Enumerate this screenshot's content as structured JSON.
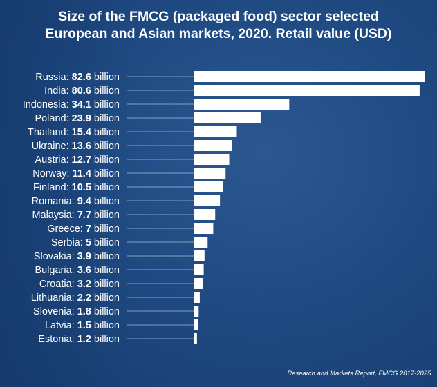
{
  "chart_data": {
    "type": "bar",
    "orientation": "horizontal",
    "title": "Size of the FMCG (packaged food) sector selected European and Asian markets, 2020. Retail value (USD)",
    "title_lines": [
      "Size of the FMCG (packaged food) sector selected",
      "European and Asian markets, 2020. Retail value (USD)"
    ],
    "categories": [
      "Russia",
      "India",
      "Indonesia",
      "Poland",
      "Thailand",
      "Ukraine",
      "Austria",
      "Norway",
      "Finland",
      "Romania",
      "Malaysia",
      "Greece",
      "Serbia",
      "Slovakia",
      "Bulgaria",
      "Croatia",
      "Lithuania",
      "Slovenia",
      "Latvia",
      "Estonia"
    ],
    "values": [
      82.6,
      80.6,
      34.1,
      23.9,
      15.4,
      13.6,
      12.7,
      11.4,
      10.5,
      9.4,
      7.7,
      7,
      5,
      3.9,
      3.6,
      3.2,
      2.2,
      1.8,
      1.5,
      1.2
    ],
    "value_unit": "billion",
    "xlim": [
      0,
      82.6
    ],
    "grid": false,
    "legend": "none",
    "bar_color": "#ffffff",
    "background_color": "#1f4a82",
    "source": "Research and Markets Report, FMCG 2017-2025."
  }
}
